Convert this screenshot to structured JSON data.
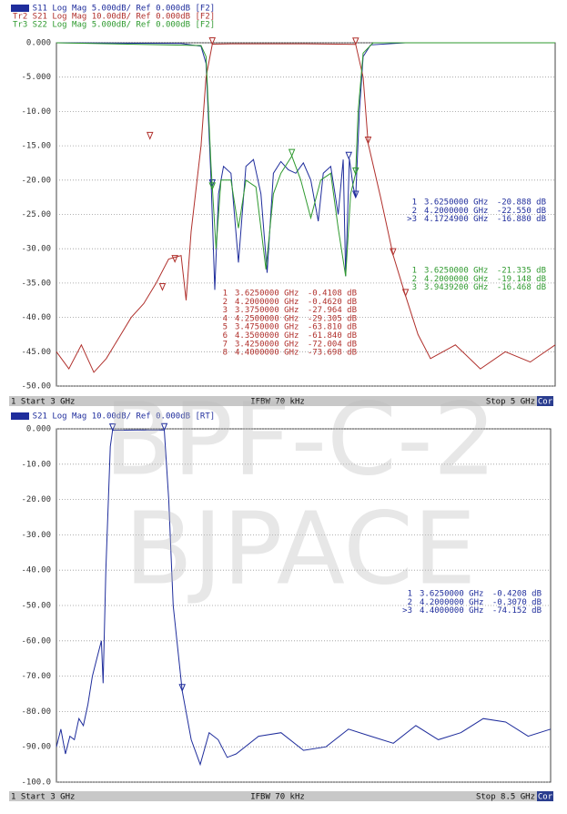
{
  "chart_data": [
    {
      "type": "line",
      "ylim": [
        -50,
        0
      ],
      "y2lim": [
        -100,
        0
      ],
      "xlim": [
        3,
        5
      ],
      "yticks": [
        {
          "value": 0,
          "label": "0.000"
        },
        {
          "value": -5,
          "label": "-5.000"
        },
        {
          "value": -10,
          "label": "-10.00"
        },
        {
          "value": -15,
          "label": "-15.00"
        },
        {
          "value": -20,
          "label": "-20.00"
        },
        {
          "value": -25,
          "label": "-25.00"
        },
        {
          "value": -30,
          "label": "-30.00"
        },
        {
          "value": -35,
          "label": "-35.00"
        },
        {
          "value": -40,
          "label": "-40.00"
        },
        {
          "value": -45,
          "label": "-45.00"
        },
        {
          "value": -50,
          "label": "-50.00"
        }
      ],
      "grid": true,
      "footer": {
        "start": "1  Start 3 GHz",
        "ifbw": "IFBW 70 kHz",
        "stop": "Stop 5 GHz",
        "status": "Cor"
      },
      "series": [
        {
          "name": "Tr1 S11 Log Mag 5.000dB/ Ref 0.000dB [F2]",
          "color": "#1f2d9c",
          "x": [
            3.0,
            3.5,
            3.58,
            3.6,
            3.62,
            3.635,
            3.65,
            3.67,
            3.7,
            3.73,
            3.76,
            3.79,
            3.82,
            3.845,
            3.87,
            3.9,
            3.93,
            3.96,
            3.99,
            4.02,
            4.05,
            4.07,
            4.1,
            4.13,
            4.15,
            4.16,
            4.175,
            4.19,
            4.2,
            4.215,
            4.23,
            4.26,
            4.4,
            5.0
          ],
          "values": [
            0,
            -0.1,
            -0.5,
            -3,
            -20,
            -36,
            -22,
            -18,
            -19,
            -32,
            -18,
            -17,
            -22,
            -33.5,
            -19,
            -17.3,
            -18.5,
            -19,
            -17.5,
            -20,
            -26,
            -19,
            -18,
            -25,
            -17,
            -34,
            -16.9,
            -21,
            -22.5,
            -10,
            -2,
            -0.3,
            0,
            0
          ],
          "markers": [
            {
              "label": "1",
              "x": 3.625,
              "y": -20.888,
              "freq": "3.6250000 GHz",
              "value": "-20.888 dB"
            },
            {
              "label": "2",
              "x": 4.2,
              "y": -22.55,
              "freq": "4.2000000 GHz",
              "value": "-22.550 dB"
            },
            {
              "label": ">3",
              "x": 4.17249,
              "y": -16.88,
              "freq": "4.1724900 GHz",
              "value": "-16.880 dB"
            }
          ]
        },
        {
          "name": "Tr2 S21 Log Mag 10.00dB/ Ref 0.000dB [F2]",
          "color": "#b0302c",
          "axis": "y2",
          "x": [
            3.0,
            3.05,
            3.1,
            3.15,
            3.2,
            3.25,
            3.3,
            3.35,
            3.4,
            3.45,
            3.5,
            3.52,
            3.54,
            3.58,
            3.6,
            3.625,
            3.7,
            3.8,
            4.0,
            4.2,
            4.23,
            4.25,
            4.3,
            4.35,
            4.4,
            4.45,
            4.5,
            4.6,
            4.7,
            4.8,
            4.9,
            5.0
          ],
          "values": [
            -90,
            -95,
            -88,
            -96,
            -92,
            -86,
            -80,
            -76,
            -70,
            -63,
            -62,
            -75,
            -55,
            -30,
            -10,
            -0.41,
            -0.3,
            -0.3,
            -0.3,
            -0.46,
            -10,
            -29.3,
            -45,
            -61.8,
            -73.7,
            -85,
            -92,
            -88,
            -95,
            -90,
            -93,
            -88
          ],
          "markers": [
            {
              "label": "1",
              "x": 3.625,
              "y": -0.4108,
              "freq": "3.6250000 GHz",
              "value": "-0.4108 dB"
            },
            {
              "label": "2",
              "x": 4.2,
              "y": -0.462,
              "freq": "4.2000000 GHz",
              "value": "-0.4620 dB"
            },
            {
              "label": "3",
              "x": 3.375,
              "y": -27.964,
              "freq": "3.3750000 GHz",
              "value": "-27.964 dB"
            },
            {
              "label": "4",
              "x": 4.25,
              "y": -29.305,
              "freq": "4.2500000 GHz",
              "value": "-29.305 dB"
            },
            {
              "label": "5",
              "x": 3.475,
              "y": -63.81,
              "freq": "3.4750000 GHz",
              "value": "-63.810 dB"
            },
            {
              "label": "6",
              "x": 4.35,
              "y": -61.84,
              "freq": "4.3500000 GHz",
              "value": "-61.840 dB"
            },
            {
              "label": "7",
              "x": 3.425,
              "y": -72.004,
              "freq": "3.4250000 GHz",
              "value": "-72.004 dB"
            },
            {
              "label": "8",
              "x": 4.4,
              "y": -73.698,
              "freq": "4.4000000 GHz",
              "value": "-73.698 dB"
            }
          ]
        },
        {
          "name": "Tr3 S22 Log Mag 5.000dB/ Ref 0.000dB [F2]",
          "color": "#2f9a2f",
          "x": [
            3.0,
            3.58,
            3.6,
            3.62,
            3.64,
            3.66,
            3.7,
            3.73,
            3.76,
            3.8,
            3.84,
            3.87,
            3.9,
            3.944,
            3.98,
            4.02,
            4.06,
            4.1,
            4.13,
            4.16,
            4.18,
            4.2,
            4.21,
            4.23,
            4.27,
            5.0
          ],
          "values": [
            0,
            -0.4,
            -2,
            -18,
            -30,
            -20,
            -20,
            -27,
            -20,
            -21,
            -33,
            -22,
            -19,
            -16.5,
            -20,
            -25.5,
            -20,
            -19,
            -27,
            -34,
            -22,
            -19,
            -10,
            -1.5,
            0,
            0
          ],
          "markers": [
            {
              "label": "1",
              "x": 3.625,
              "y": -21.335,
              "freq": "3.6250000 GHz",
              "value": "-21.335 dB"
            },
            {
              "label": "2",
              "x": 4.2,
              "y": -19.148,
              "freq": "4.2000000 GHz",
              "value": "-19.148 dB"
            },
            {
              "label": "3",
              "x": 3.94392,
              "y": -16.468,
              "freq": "3.9439200 GHz",
              "value": "-16.468 dB"
            }
          ]
        }
      ]
    },
    {
      "type": "line",
      "ylim": [
        -100,
        0
      ],
      "xlim": [
        3,
        8.5
      ],
      "yticks": [
        {
          "value": 0,
          "label": "0.000"
        },
        {
          "value": -10,
          "label": "-10.00"
        },
        {
          "value": -20,
          "label": "-20.00"
        },
        {
          "value": -30,
          "label": "-30.00"
        },
        {
          "value": -40,
          "label": "-40.00"
        },
        {
          "value": -50,
          "label": "-50.00"
        },
        {
          "value": -60,
          "label": "-60.00"
        },
        {
          "value": -70,
          "label": "-70.00"
        },
        {
          "value": -80,
          "label": "-80.00"
        },
        {
          "value": -90,
          "label": "-90.00"
        },
        {
          "value": -100,
          "label": "-100.0"
        }
      ],
      "grid": true,
      "footer": {
        "start": "1  Start 3 GHz",
        "ifbw": "IFBW 70 kHz",
        "stop": "Stop 8.5 GHz",
        "status": "Cor"
      },
      "series": [
        {
          "name": "Tr1 S21 Log Mag 10.00dB/ Ref 0.000dB [RT]",
          "color": "#1f2d9c",
          "x": [
            3.0,
            3.05,
            3.1,
            3.15,
            3.2,
            3.25,
            3.3,
            3.35,
            3.4,
            3.45,
            3.5,
            3.52,
            3.55,
            3.6,
            3.625,
            3.9,
            4.2,
            4.25,
            4.3,
            4.4,
            4.5,
            4.6,
            4.7,
            4.8,
            4.9,
            5.0,
            5.25,
            5.5,
            5.75,
            6.0,
            6.25,
            6.5,
            6.75,
            7.0,
            7.25,
            7.5,
            7.75,
            8.0,
            8.25,
            8.5
          ],
          "values": [
            -90,
            -85,
            -92,
            -87,
            -88,
            -82,
            -84,
            -78,
            -70,
            -65,
            -60,
            -72,
            -40,
            -5,
            -0.42,
            -0.3,
            -0.31,
            -20,
            -50,
            -74.15,
            -88,
            -95,
            -86,
            -88,
            -93,
            -92,
            -87,
            -86,
            -91,
            -90,
            -85,
            -87,
            -89,
            -84,
            -88,
            -86,
            -82,
            -83,
            -87,
            -85
          ],
          "markers": [
            {
              "label": "1",
              "x": 3.625,
              "y": -0.4208,
              "freq": "3.6250000 GHz",
              "value": "-0.4208 dB"
            },
            {
              "label": "2",
              "x": 4.2,
              "y": -0.307,
              "freq": "4.2000000 GHz",
              "value": "-0.3070 dB"
            },
            {
              "label": ">3",
              "x": 4.4,
              "y": -74.152,
              "freq": "4.4000000 GHz",
              "value": "-74.152 dB"
            }
          ]
        }
      ]
    }
  ],
  "watermark": [
    "BPF-C-2",
    "BJPACE"
  ]
}
